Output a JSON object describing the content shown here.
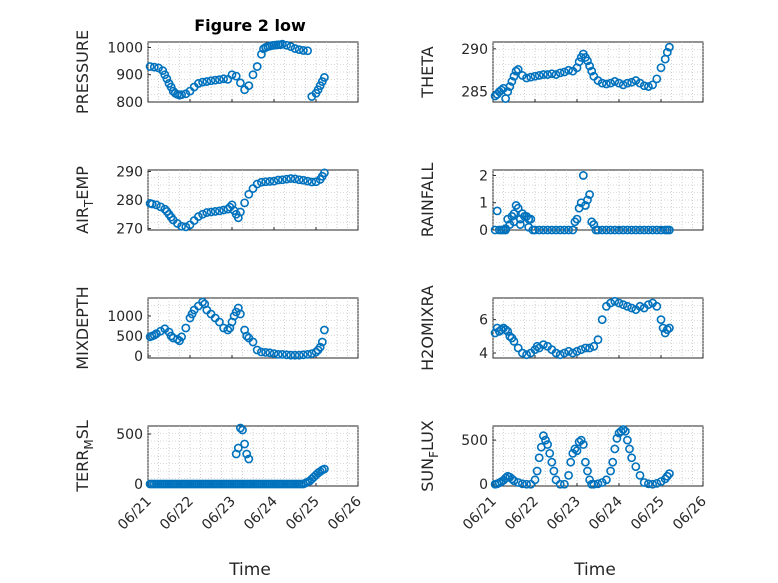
{
  "figure": {
    "background": "#ffffff",
    "marker_color": "#0072bd",
    "title": "Figure 2 low"
  },
  "chart_data": [
    {
      "type": "scatter",
      "marker": "circle",
      "ylabel": "PRESSURE",
      "ylim": [
        800,
        1020
      ],
      "yticks": [
        800,
        900,
        1000
      ],
      "xlim": [
        0,
        5
      ],
      "grid": true,
      "title": "Figure 2 low",
      "x": [
        0.05,
        0.15,
        0.25,
        0.35,
        0.4,
        0.45,
        0.5,
        0.55,
        0.6,
        0.65,
        0.7,
        0.75,
        0.8,
        0.9,
        1.0,
        1.1,
        1.2,
        1.3,
        1.4,
        1.5,
        1.6,
        1.7,
        1.8,
        1.9,
        2.0,
        2.1,
        2.2,
        2.3,
        2.4,
        2.5,
        2.6,
        2.7,
        2.75,
        2.8,
        2.85,
        2.9,
        2.95,
        3.0,
        3.05,
        3.1,
        3.15,
        3.2,
        3.3,
        3.4,
        3.5,
        3.6,
        3.7,
        3.8,
        3.9,
        4.0,
        4.05,
        4.1,
        4.15,
        4.2
      ],
      "y": [
        930,
        928,
        925,
        915,
        900,
        885,
        868,
        855,
        840,
        832,
        828,
        825,
        827,
        830,
        840,
        855,
        868,
        873,
        875,
        878,
        880,
        882,
        885,
        883,
        900,
        895,
        870,
        845,
        860,
        900,
        930,
        975,
        995,
        1000,
        1003,
        1005,
        1007,
        1008,
        1009,
        1010,
        1010,
        1012,
        1008,
        1003,
        996,
        992,
        989,
        988,
        820,
        832,
        845,
        860,
        875,
        890
      ]
    },
    {
      "type": "scatter",
      "marker": "circle",
      "ylabel": "THETA",
      "ylim": [
        283.8,
        290.8
      ],
      "yticks": [
        285,
        290
      ],
      "xlim": [
        0,
        5
      ],
      "grid": true,
      "x": [
        0.05,
        0.1,
        0.15,
        0.2,
        0.25,
        0.3,
        0.35,
        0.4,
        0.45,
        0.5,
        0.55,
        0.6,
        0.7,
        0.8,
        0.9,
        1.0,
        1.1,
        1.2,
        1.3,
        1.4,
        1.5,
        1.6,
        1.7,
        1.8,
        1.9,
        2.0,
        2.05,
        2.1,
        2.15,
        2.2,
        2.25,
        2.3,
        2.35,
        2.4,
        2.5,
        2.6,
        2.7,
        2.8,
        2.9,
        3.0,
        3.1,
        3.2,
        3.3,
        3.4,
        3.5,
        3.6,
        3.7,
        3.8,
        3.9,
        4.0,
        4.1,
        4.15,
        4.2
      ],
      "y": [
        284.5,
        284.7,
        285.0,
        285.2,
        285.4,
        284.2,
        285.0,
        285.6,
        286.2,
        286.8,
        287.4,
        287.6,
        286.9,
        286.6,
        286.7,
        286.8,
        286.9,
        287.0,
        287.0,
        287.1,
        287.0,
        287.2,
        287.3,
        287.5,
        287.4,
        287.8,
        288.5,
        289.0,
        289.4,
        289.0,
        288.6,
        288.0,
        287.4,
        286.8,
        286.3,
        286.0,
        285.9,
        286.0,
        286.2,
        286.0,
        285.8,
        286.0,
        286.1,
        286.3,
        286.0,
        285.7,
        285.6,
        285.8,
        286.5,
        287.8,
        288.8,
        289.6,
        290.2
      ]
    },
    {
      "type": "scatter",
      "marker": "circle",
      "ylabel": "AIR_TEMP",
      "ylim": [
        269.5,
        290.5
      ],
      "yticks": [
        270,
        280,
        290
      ],
      "xlim": [
        0,
        5
      ],
      "grid": true,
      "x": [
        0.05,
        0.1,
        0.2,
        0.3,
        0.4,
        0.45,
        0.5,
        0.55,
        0.6,
        0.7,
        0.8,
        0.9,
        1.0,
        1.1,
        1.2,
        1.3,
        1.4,
        1.5,
        1.6,
        1.7,
        1.8,
        1.9,
        1.95,
        2.0,
        2.05,
        2.1,
        2.15,
        2.2,
        2.3,
        2.4,
        2.5,
        2.6,
        2.7,
        2.8,
        2.9,
        3.0,
        3.1,
        3.2,
        3.3,
        3.4,
        3.5,
        3.6,
        3.7,
        3.8,
        3.9,
        4.0,
        4.1,
        4.15,
        4.2
      ],
      "y": [
        278.8,
        278.6,
        278.3,
        277.6,
        276.8,
        276.0,
        275.0,
        274.0,
        273.0,
        271.8,
        270.8,
        270.6,
        271.3,
        272.8,
        274.2,
        275.0,
        275.6,
        275.8,
        276.0,
        276.2,
        276.5,
        276.8,
        277.5,
        278.3,
        276.3,
        275.0,
        273.8,
        275.8,
        279.0,
        282.0,
        284.0,
        285.6,
        286.2,
        286.4,
        286.5,
        286.6,
        287.0,
        287.1,
        287.3,
        287.5,
        287.4,
        287.1,
        286.9,
        286.6,
        286.3,
        286.4,
        287.2,
        288.3,
        289.5
      ]
    },
    {
      "type": "scatter",
      "marker": "circle",
      "ylabel": "RAINFALL",
      "ylim": [
        0,
        2.2
      ],
      "yticks": [
        0,
        1,
        2
      ],
      "xlim": [
        0,
        5
      ],
      "grid": true,
      "x": [
        0.05,
        0.1,
        0.15,
        0.2,
        0.25,
        0.3,
        0.35,
        0.4,
        0.45,
        0.5,
        0.55,
        0.6,
        0.65,
        0.7,
        0.75,
        0.8,
        0.85,
        0.9,
        0.95,
        1.0,
        1.1,
        1.2,
        1.3,
        1.4,
        1.5,
        1.6,
        1.7,
        1.8,
        1.9,
        1.95,
        2.0,
        2.05,
        2.1,
        2.15,
        2.2,
        2.25,
        2.3,
        2.35,
        2.4,
        2.45,
        2.5,
        2.6,
        2.7,
        2.8,
        2.9,
        3.0,
        3.1,
        3.2,
        3.3,
        3.4,
        3.5,
        3.6,
        3.7,
        3.8,
        3.9,
        4.0,
        4.1,
        4.15,
        4.2,
        0.3,
        0.5,
        0.65,
        0.85
      ],
      "y": [
        0,
        0.7,
        0,
        0,
        0,
        0,
        0.4,
        0.2,
        0.5,
        0.6,
        0.9,
        0.8,
        0.4,
        0.6,
        0.5,
        0.5,
        0.4,
        0.4,
        0,
        0,
        0,
        0,
        0,
        0,
        0,
        0,
        0,
        0,
        0,
        0.3,
        0.4,
        0.8,
        1.0,
        2.0,
        0.9,
        1.1,
        1.3,
        0.3,
        0.2,
        0,
        0,
        0,
        0,
        0,
        0,
        0,
        0,
        0,
        0,
        0,
        0,
        0,
        0,
        0,
        0,
        0,
        0,
        0,
        0,
        0.05,
        0.3,
        0.2,
        0.1
      ]
    },
    {
      "type": "scatter",
      "marker": "circle",
      "ylabel": "MIXDEPTH",
      "ylim": [
        -50,
        1450
      ],
      "yticks": [
        0,
        500,
        1000
      ],
      "xlim": [
        0,
        5
      ],
      "grid": true,
      "x": [
        0.05,
        0.1,
        0.15,
        0.2,
        0.3,
        0.4,
        0.5,
        0.55,
        0.6,
        0.7,
        0.75,
        0.8,
        0.9,
        1.0,
        1.05,
        1.1,
        1.2,
        1.3,
        1.35,
        1.4,
        1.5,
        1.6,
        1.7,
        1.8,
        1.9,
        1.95,
        2.0,
        2.05,
        2.1,
        2.15,
        2.2,
        2.3,
        2.35,
        2.4,
        2.5,
        2.6,
        2.7,
        2.8,
        2.9,
        3.0,
        3.1,
        3.2,
        3.3,
        3.4,
        3.5,
        3.6,
        3.7,
        3.8,
        3.9,
        4.0,
        4.05,
        4.1,
        4.15,
        4.2
      ],
      "y": [
        480,
        500,
        520,
        560,
        620,
        680,
        600,
        500,
        450,
        420,
        380,
        480,
        700,
        950,
        1050,
        1150,
        1250,
        1350,
        1300,
        1150,
        1050,
        950,
        850,
        700,
        650,
        700,
        850,
        1000,
        1100,
        1200,
        1050,
        650,
        500,
        450,
        350,
        150,
        100,
        90,
        80,
        60,
        40,
        40,
        30,
        20,
        20,
        20,
        30,
        40,
        60,
        100,
        150,
        220,
        350,
        650
      ]
    },
    {
      "type": "scatter",
      "marker": "circle",
      "ylabel": "H2OMIXRA",
      "ylim": [
        3.7,
        7.3
      ],
      "yticks": [
        4,
        6
      ],
      "xlim": [
        0,
        5
      ],
      "grid": true,
      "x": [
        0.05,
        0.1,
        0.15,
        0.2,
        0.25,
        0.3,
        0.35,
        0.4,
        0.45,
        0.5,
        0.6,
        0.7,
        0.8,
        0.9,
        1.0,
        1.05,
        1.1,
        1.2,
        1.3,
        1.4,
        1.5,
        1.6,
        1.7,
        1.8,
        1.9,
        2.0,
        2.1,
        2.2,
        2.3,
        2.4,
        2.5,
        2.6,
        2.7,
        2.8,
        2.9,
        3.0,
        3.1,
        3.2,
        3.3,
        3.4,
        3.5,
        3.6,
        3.7,
        3.8,
        3.9,
        4.0,
        4.05,
        4.1,
        4.15,
        4.2
      ],
      "y": [
        5.2,
        5.5,
        5.3,
        5.4,
        5.5,
        5.4,
        5.3,
        5.0,
        4.9,
        4.7,
        4.3,
        4.0,
        3.9,
        4.0,
        4.2,
        4.4,
        4.3,
        4.5,
        4.4,
        4.2,
        4.0,
        3.9,
        4.0,
        4.1,
        4.0,
        4.1,
        4.2,
        4.3,
        4.3,
        4.4,
        4.8,
        6.0,
        6.8,
        7.0,
        7.1,
        7.0,
        6.9,
        6.8,
        6.7,
        6.6,
        6.8,
        6.7,
        6.9,
        7.0,
        6.8,
        6.0,
        5.5,
        5.2,
        5.4,
        5.5
      ]
    },
    {
      "type": "scatter",
      "marker": "circle",
      "ylabel": "TERR_MSL",
      "ylim": [
        -20,
        580
      ],
      "yticks": [
        0,
        500
      ],
      "xlim": [
        0,
        5
      ],
      "grid": true,
      "x": [
        0.05,
        0.1,
        0.15,
        0.2,
        0.25,
        0.3,
        0.35,
        0.4,
        0.45,
        0.5,
        0.55,
        0.6,
        0.65,
        0.7,
        0.75,
        0.8,
        0.85,
        0.9,
        0.95,
        1.0,
        1.05,
        1.1,
        1.15,
        1.2,
        1.25,
        1.3,
        1.35,
        1.4,
        1.45,
        1.5,
        1.55,
        1.6,
        1.65,
        1.7,
        1.75,
        1.8,
        1.85,
        1.9,
        1.95,
        2.0,
        2.05,
        2.1,
        2.15,
        2.2,
        2.25,
        2.3,
        2.35,
        2.4,
        2.45,
        2.5,
        2.55,
        2.6,
        2.65,
        2.7,
        2.75,
        2.8,
        2.85,
        2.9,
        2.95,
        3.0,
        3.05,
        3.1,
        3.15,
        3.2,
        3.25,
        3.3,
        3.35,
        3.4,
        3.45,
        3.5,
        3.55,
        3.6,
        3.65,
        3.7,
        3.75,
        3.8,
        3.85,
        3.9,
        3.95,
        4.0,
        4.05,
        4.1,
        4.15,
        4.2,
        2.1,
        2.15,
        2.2,
        2.25,
        2.3,
        2.35,
        2.4
      ],
      "y": [
        0,
        0,
        0,
        0,
        0,
        0,
        0,
        0,
        0,
        0,
        0,
        0,
        0,
        0,
        0,
        0,
        0,
        0,
        0,
        0,
        0,
        0,
        0,
        0,
        0,
        0,
        0,
        0,
        0,
        0,
        0,
        0,
        0,
        0,
        0,
        0,
        0,
        0,
        0,
        0,
        0,
        0,
        0,
        0,
        0,
        0,
        0,
        0,
        0,
        0,
        0,
        0,
        0,
        0,
        0,
        0,
        0,
        0,
        0,
        0,
        0,
        0,
        0,
        0,
        0,
        0,
        0,
        0,
        0,
        0,
        0,
        0,
        0,
        0,
        10,
        20,
        30,
        50,
        70,
        90,
        110,
        125,
        140,
        150,
        300,
        360,
        560,
        540,
        400,
        300,
        250
      ]
    },
    {
      "type": "scatter",
      "marker": "circle",
      "ylabel": "SUN_FLUX",
      "ylim": [
        -20,
        660
      ],
      "yticks": [
        0,
        500
      ],
      "xlim": [
        0,
        5
      ],
      "grid": true,
      "x": [
        0.05,
        0.1,
        0.15,
        0.2,
        0.25,
        0.3,
        0.35,
        0.4,
        0.45,
        0.5,
        0.6,
        0.7,
        0.8,
        0.9,
        1.0,
        1.05,
        1.1,
        1.15,
        1.2,
        1.25,
        1.3,
        1.35,
        1.4,
        1.45,
        1.5,
        1.6,
        1.7,
        1.8,
        1.85,
        1.9,
        1.95,
        2.0,
        2.05,
        2.1,
        2.15,
        2.2,
        2.25,
        2.3,
        2.35,
        2.4,
        2.5,
        2.6,
        2.7,
        2.8,
        2.85,
        2.9,
        2.95,
        3.0,
        3.05,
        3.1,
        3.15,
        3.2,
        3.25,
        3.3,
        3.4,
        3.5,
        3.6,
        3.7,
        3.8,
        3.9,
        4.0,
        4.1,
        4.15,
        4.2
      ],
      "y": [
        0,
        5,
        15,
        30,
        45,
        70,
        90,
        80,
        60,
        40,
        20,
        5,
        0,
        0,
        50,
        150,
        300,
        420,
        550,
        500,
        450,
        350,
        250,
        150,
        50,
        0,
        0,
        100,
        250,
        350,
        400,
        380,
        480,
        500,
        450,
        250,
        150,
        50,
        0,
        0,
        5,
        20,
        50,
        150,
        250,
        400,
        520,
        580,
        600,
        620,
        600,
        500,
        400,
        300,
        200,
        100,
        20,
        5,
        0,
        10,
        30,
        60,
        90,
        120
      ]
    }
  ],
  "shared_x": {
    "label": "Time",
    "ticks": [
      0,
      1,
      2,
      3,
      4,
      5
    ],
    "tick_labels": [
      "06/21",
      "06/22",
      "06/23",
      "06/24",
      "06/25",
      "06/26"
    ]
  }
}
